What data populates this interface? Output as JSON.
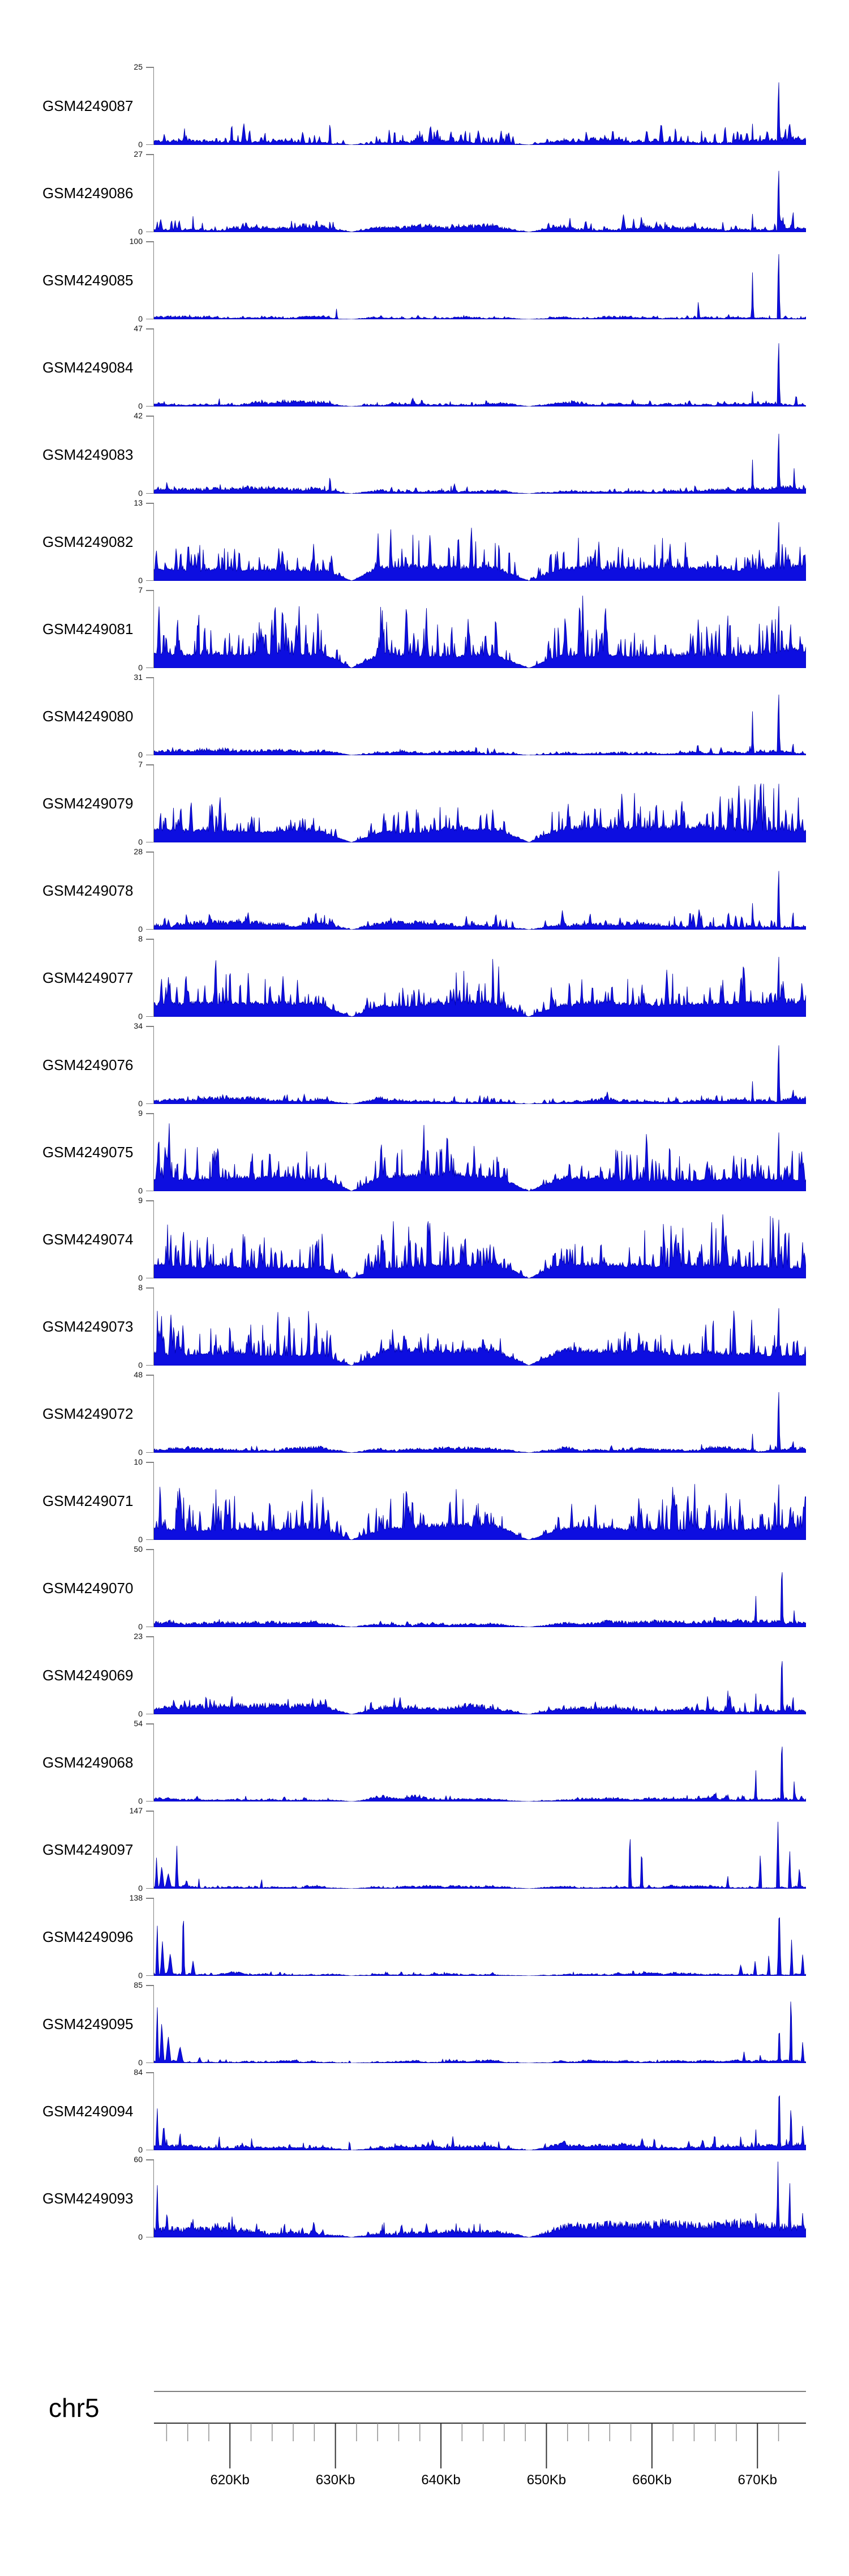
{
  "figure": {
    "background": "#ffffff",
    "chrom": "chr5"
  },
  "chart_data": {
    "type": "area",
    "description": "Genome browser coverage tracks (blue area signal) for 25 GSM samples over chr5 ~612.8-674.6 Kb",
    "chrom": "chr5",
    "x_axis": {
      "unit": "Kb",
      "region_start_kb": 612.8,
      "region_end_kb": 674.6,
      "major_ticks_kb": [
        620,
        630,
        640,
        650,
        660,
        670
      ],
      "tick_labels": [
        "620Kb",
        "630Kb",
        "640Kb",
        "650Kb",
        "660Kb",
        "670Kb"
      ],
      "minor_tick_step_kb": 2,
      "minor_first_kb": 614,
      "minor_last_kb": 672
    },
    "y_axis": {
      "min_label": "0"
    },
    "colors": {
      "signal_fill": "#0d0ee0",
      "signal_stroke": "#0000a8",
      "bracket": "#808080",
      "ruler_top_line": "#555555",
      "ruler_axis_line": "#333333",
      "minor_tick": "#909090",
      "major_tick": "#333333",
      "text": "#000000"
    },
    "notches": [
      [
        0.303,
        0.045
      ],
      [
        0.575,
        0.052
      ]
    ],
    "tracks": [
      {
        "label": "GSM4249087",
        "ymax": 25,
        "profile": "sparse",
        "seed": 11,
        "base": 0.055,
        "amp": 0.28,
        "peaks": [
          [
            0.27,
            0.33,
            5
          ],
          [
            0.43,
            0.2,
            5
          ],
          [
            0.54,
            0.18,
            4
          ],
          [
            0.8,
            0.3,
            4
          ],
          [
            0.84,
            0.2,
            4
          ],
          [
            0.918,
            0.28,
            4
          ],
          [
            0.958,
            0.96,
            5
          ],
          [
            0.975,
            0.3,
            4
          ]
        ]
      },
      {
        "label": "GSM4249086",
        "ymax": 27,
        "profile": "sparse",
        "seed": 22,
        "base": 0.05,
        "amp": 0.2,
        "peaks": [
          [
            0.06,
            0.22,
            4
          ],
          [
            0.27,
            0.18,
            4
          ],
          [
            0.52,
            0.15,
            4
          ],
          [
            0.83,
            0.18,
            4
          ],
          [
            0.918,
            0.24,
            4
          ],
          [
            0.958,
            0.94,
            5
          ],
          [
            0.98,
            0.35,
            4
          ]
        ]
      },
      {
        "label": "GSM4249085",
        "ymax": 100,
        "profile": "sparse",
        "seed": 33,
        "base": 0.022,
        "amp": 0.06,
        "peaks": [
          [
            0.055,
            0.07,
            4
          ],
          [
            0.28,
            0.14,
            4
          ],
          [
            0.475,
            0.06,
            4
          ],
          [
            0.835,
            0.28,
            4
          ],
          [
            0.918,
            0.62,
            4
          ],
          [
            0.958,
            1,
            5
          ]
        ]
      },
      {
        "label": "GSM4249084",
        "ymax": 47,
        "profile": "sparse",
        "seed": 44,
        "base": 0.04,
        "amp": 0.1,
        "peaks": [
          [
            0.1,
            0.12,
            4
          ],
          [
            0.27,
            0.1,
            4
          ],
          [
            0.918,
            0.2,
            4
          ],
          [
            0.958,
            0.97,
            5
          ],
          [
            0.985,
            0.2,
            4
          ]
        ]
      },
      {
        "label": "GSM4249083",
        "ymax": 42,
        "profile": "sparse",
        "seed": 55,
        "base": 0.05,
        "amp": 0.13,
        "peaks": [
          [
            0.02,
            0.2,
            4
          ],
          [
            0.27,
            0.26,
            5
          ],
          [
            0.48,
            0.12,
            4
          ],
          [
            0.83,
            0.15,
            4
          ],
          [
            0.918,
            0.45,
            4
          ],
          [
            0.958,
            0.92,
            5
          ],
          [
            0.982,
            0.38,
            4
          ]
        ]
      },
      {
        "label": "GSM4249082",
        "ymax": 13,
        "profile": "dense",
        "seed": 66,
        "base": 0.06,
        "amp": 0.8,
        "peaks": [
          [
            0.958,
            0.9,
            5
          ]
        ]
      },
      {
        "label": "GSM4249081",
        "ymax": 7,
        "profile": "dense",
        "seed": 77,
        "base": 0.08,
        "amp": 0.95,
        "peaks": [
          [
            0.958,
            0.95,
            5
          ]
        ]
      },
      {
        "label": "GSM4249080",
        "ymax": 31,
        "profile": "sparse",
        "seed": 88,
        "base": 0.045,
        "amp": 0.11,
        "peaks": [
          [
            0.1,
            0.1,
            4
          ],
          [
            0.834,
            0.2,
            4
          ],
          [
            0.918,
            0.58,
            4
          ],
          [
            0.958,
            0.93,
            5
          ],
          [
            0.98,
            0.2,
            4
          ]
        ]
      },
      {
        "label": "GSM4249079",
        "ymax": 7,
        "profile": "dense",
        "seed": 99,
        "base": 0.07,
        "amp": 0.8,
        "peaks": [
          [
            0.958,
            0.9,
            5
          ]
        ]
      },
      {
        "label": "GSM4249078",
        "ymax": 28,
        "profile": "sparse",
        "seed": 110,
        "base": 0.06,
        "amp": 0.24,
        "peaks": [
          [
            0.05,
            0.28,
            4
          ],
          [
            0.27,
            0.2,
            4
          ],
          [
            0.55,
            0.15,
            4
          ],
          [
            0.84,
            0.2,
            4
          ],
          [
            0.918,
            0.35,
            4
          ],
          [
            0.958,
            0.9,
            5
          ],
          [
            0.98,
            0.3,
            4
          ]
        ]
      },
      {
        "label": "GSM4249077",
        "ymax": 8,
        "profile": "dense",
        "seed": 121,
        "base": 0.07,
        "amp": 0.85,
        "peaks": [
          [
            0.958,
            0.92,
            5
          ]
        ]
      },
      {
        "label": "GSM4249076",
        "ymax": 34,
        "profile": "sparse",
        "seed": 132,
        "base": 0.05,
        "amp": 0.13,
        "peaks": [
          [
            0.2,
            0.16,
            4
          ],
          [
            0.48,
            0.1,
            4
          ],
          [
            0.84,
            0.12,
            4
          ],
          [
            0.918,
            0.3,
            4
          ],
          [
            0.958,
            0.9,
            5
          ],
          [
            0.98,
            0.25,
            4
          ]
        ]
      },
      {
        "label": "GSM4249075",
        "ymax": 9,
        "profile": "dense",
        "seed": 143,
        "base": 0.07,
        "amp": 0.88,
        "peaks": [
          [
            0.958,
            0.9,
            5
          ]
        ]
      },
      {
        "label": "GSM4249074",
        "ymax": 9,
        "profile": "dense",
        "seed": 154,
        "base": 0.07,
        "amp": 0.88,
        "peaks": [
          [
            0.42,
            0.95,
            6
          ],
          [
            0.958,
            0.9,
            5
          ]
        ]
      },
      {
        "label": "GSM4249073",
        "ymax": 8,
        "profile": "dense",
        "seed": 165,
        "base": 0.07,
        "amp": 0.82,
        "peaks": [
          [
            0.958,
            0.88,
            5
          ]
        ]
      },
      {
        "label": "GSM4249072",
        "ymax": 48,
        "profile": "sparse",
        "seed": 176,
        "base": 0.04,
        "amp": 0.1,
        "peaks": [
          [
            0.15,
            0.1,
            4
          ],
          [
            0.84,
            0.12,
            4
          ],
          [
            0.918,
            0.25,
            4
          ],
          [
            0.958,
            0.93,
            5
          ],
          [
            0.98,
            0.2,
            4
          ]
        ]
      },
      {
        "label": "GSM4249071",
        "ymax": 10,
        "profile": "dense",
        "seed": 187,
        "base": 0.06,
        "amp": 0.78,
        "peaks": [
          [
            0.958,
            0.85,
            5
          ]
        ]
      },
      {
        "label": "GSM4249070",
        "ymax": 50,
        "profile": "sparse",
        "seed": 198,
        "base": 0.05,
        "amp": 0.1,
        "peaks": [
          [
            0.1,
            0.12,
            4
          ],
          [
            0.86,
            0.2,
            4
          ],
          [
            0.923,
            0.45,
            4
          ],
          [
            0.963,
            0.95,
            5
          ],
          [
            0.982,
            0.25,
            4
          ]
        ]
      },
      {
        "label": "GSM4249069",
        "ymax": 23,
        "profile": "sparse",
        "seed": 209,
        "base": 0.07,
        "amp": 0.25,
        "peaks": [
          [
            0.08,
            0.3,
            5
          ],
          [
            0.2,
            0.2,
            4
          ],
          [
            0.52,
            0.18,
            4
          ],
          [
            0.88,
            0.35,
            4
          ],
          [
            0.923,
            0.3,
            4
          ],
          [
            0.963,
            0.92,
            5
          ],
          [
            0.98,
            0.3,
            4
          ]
        ]
      },
      {
        "label": "GSM4249068",
        "ymax": 54,
        "profile": "sparse",
        "seed": 220,
        "base": 0.04,
        "amp": 0.09,
        "peaks": [
          [
            0.2,
            0.08,
            4
          ],
          [
            0.86,
            0.15,
            4
          ],
          [
            0.923,
            0.45,
            4
          ],
          [
            0.963,
            0.95,
            5
          ],
          [
            0.982,
            0.3,
            4
          ]
        ]
      },
      {
        "label": "GSM4249097",
        "ymax": 147,
        "profile": "edge",
        "seed": 231,
        "base": 0.022,
        "amp": 0.05,
        "peaks": [
          [
            0.004,
            0.42,
            5
          ],
          [
            0.012,
            0.3,
            9
          ],
          [
            0.022,
            0.2,
            12
          ],
          [
            0.035,
            0.6,
            5
          ],
          [
            0.05,
            0.12,
            8
          ],
          [
            0.069,
            0.13,
            4
          ],
          [
            0.165,
            0.15,
            4
          ],
          [
            0.235,
            0.07,
            4
          ],
          [
            0.52,
            0.06,
            4
          ],
          [
            0.73,
            0.82,
            5
          ],
          [
            0.748,
            0.58,
            5
          ],
          [
            0.88,
            0.18,
            5
          ],
          [
            0.93,
            0.5,
            5
          ],
          [
            0.957,
            0.88,
            6
          ],
          [
            0.975,
            0.55,
            5
          ],
          [
            0.99,
            0.3,
            6
          ]
        ]
      },
      {
        "label": "GSM4249096",
        "ymax": 138,
        "profile": "edge",
        "seed": 242,
        "base": 0.025,
        "amp": 0.06,
        "peaks": [
          [
            0.005,
            0.72,
            5
          ],
          [
            0.013,
            0.45,
            8
          ],
          [
            0.025,
            0.3,
            10
          ],
          [
            0.045,
            0.97,
            5
          ],
          [
            0.06,
            0.2,
            8
          ],
          [
            0.2,
            0.05,
            4
          ],
          [
            0.52,
            0.06,
            4
          ],
          [
            0.735,
            0.1,
            4
          ],
          [
            0.9,
            0.15,
            8
          ],
          [
            0.922,
            0.2,
            6
          ],
          [
            0.943,
            0.3,
            5
          ],
          [
            0.959,
            1,
            6
          ],
          [
            0.978,
            0.5,
            5
          ],
          [
            0.995,
            0.3,
            6
          ]
        ]
      },
      {
        "label": "GSM4249095",
        "ymax": 85,
        "profile": "edge",
        "seed": 253,
        "base": 0.02,
        "amp": 0.05,
        "peaks": [
          [
            0.005,
            0.8,
            5
          ],
          [
            0.012,
            0.55,
            8
          ],
          [
            0.022,
            0.35,
            10
          ],
          [
            0.04,
            0.22,
            12
          ],
          [
            0.07,
            0.08,
            8
          ],
          [
            0.3,
            0.04,
            4
          ],
          [
            0.905,
            0.15,
            6
          ],
          [
            0.93,
            0.12,
            5
          ],
          [
            0.959,
            0.55,
            5
          ],
          [
            0.977,
            1,
            5
          ],
          [
            0.995,
            0.3,
            5
          ]
        ]
      },
      {
        "label": "GSM4249094",
        "ymax": 84,
        "profile": "edge",
        "seed": 264,
        "base": 0.07,
        "amp": 0.16,
        "peaks": [
          [
            0.005,
            0.6,
            5
          ],
          [
            0.015,
            0.35,
            8
          ],
          [
            0.04,
            0.25,
            6
          ],
          [
            0.1,
            0.2,
            5
          ],
          [
            0.15,
            0.18,
            4
          ],
          [
            0.3,
            0.15,
            4
          ],
          [
            0.45,
            0.12,
            4
          ],
          [
            0.6,
            0.1,
            4
          ],
          [
            0.75,
            0.12,
            4
          ],
          [
            0.86,
            0.25,
            5
          ],
          [
            0.9,
            0.2,
            5
          ],
          [
            0.923,
            0.3,
            4
          ],
          [
            0.959,
            1,
            5
          ],
          [
            0.977,
            0.65,
            5
          ],
          [
            0.995,
            0.35,
            5
          ]
        ]
      },
      {
        "label": "GSM4249093",
        "ymax": 60,
        "profile": "edge",
        "seed": 275,
        "base": 0.11,
        "amp": 0.2,
        "peaks": [
          [
            0.005,
            0.75,
            5
          ],
          [
            0.02,
            0.35,
            7
          ],
          [
            0.06,
            0.25,
            5
          ],
          [
            0.12,
            0.3,
            5
          ],
          [
            0.2,
            0.25,
            4
          ],
          [
            0.35,
            0.2,
            4
          ],
          [
            0.5,
            0.18,
            4
          ],
          [
            0.65,
            0.2,
            4
          ],
          [
            0.78,
            0.25,
            4
          ],
          [
            0.86,
            0.3,
            5
          ],
          [
            0.9,
            0.28,
            5
          ],
          [
            0.923,
            0.35,
            4
          ],
          [
            0.957,
            1,
            5
          ],
          [
            0.975,
            0.8,
            5
          ],
          [
            0.995,
            0.35,
            5
          ]
        ]
      }
    ]
  }
}
